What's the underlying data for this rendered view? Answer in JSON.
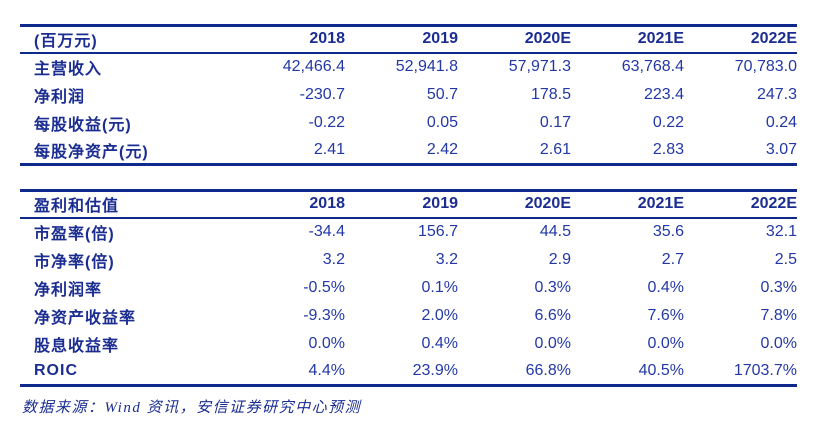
{
  "colors": {
    "border_navy": "#10298c",
    "label_navy": "#1b2d91",
    "value_blue": "#2338a6",
    "background": "#ffffff"
  },
  "forecast_table": {
    "unit_label": "(百万元)",
    "columns": [
      "2018",
      "2019",
      "2020E",
      "2021E",
      "2022E"
    ],
    "rows": [
      {
        "label": "主营收入",
        "values": [
          "42,466.4",
          "52,941.8",
          "57,971.3",
          "63,768.4",
          "70,783.0"
        ]
      },
      {
        "label": "净利润",
        "values": [
          "-230.7",
          "50.7",
          "178.5",
          "223.4",
          "247.3"
        ]
      },
      {
        "label": "每股收益(元)",
        "values": [
          "-0.22",
          "0.05",
          "0.17",
          "0.22",
          "0.24"
        ]
      },
      {
        "label": "每股净资产(元)",
        "values": [
          "2.41",
          "2.42",
          "2.61",
          "2.83",
          "3.07"
        ]
      }
    ]
  },
  "valuation_table": {
    "title": "盈利和估值",
    "columns": [
      "2018",
      "2019",
      "2020E",
      "2021E",
      "2022E"
    ],
    "rows": [
      {
        "label": "市盈率(倍)",
        "values": [
          "-34.4",
          "156.7",
          "44.5",
          "35.6",
          "32.1"
        ]
      },
      {
        "label": "市净率(倍)",
        "values": [
          "3.2",
          "3.2",
          "2.9",
          "2.7",
          "2.5"
        ]
      },
      {
        "label": "净利润率",
        "values": [
          "-0.5%",
          "0.1%",
          "0.3%",
          "0.4%",
          "0.3%"
        ]
      },
      {
        "label": "净资产收益率",
        "values": [
          "-9.3%",
          "2.0%",
          "6.6%",
          "7.6%",
          "7.8%"
        ]
      },
      {
        "label": "股息收益率",
        "values": [
          "0.0%",
          "0.4%",
          "0.0%",
          "0.0%",
          "0.0%"
        ]
      },
      {
        "label": "ROIC",
        "values": [
          "4.4%",
          "23.9%",
          "66.8%",
          "40.5%",
          "1703.7%"
        ]
      }
    ]
  },
  "footer": {
    "source_note": "数据来源：Wind 资讯，安信证券研究中心预测"
  }
}
